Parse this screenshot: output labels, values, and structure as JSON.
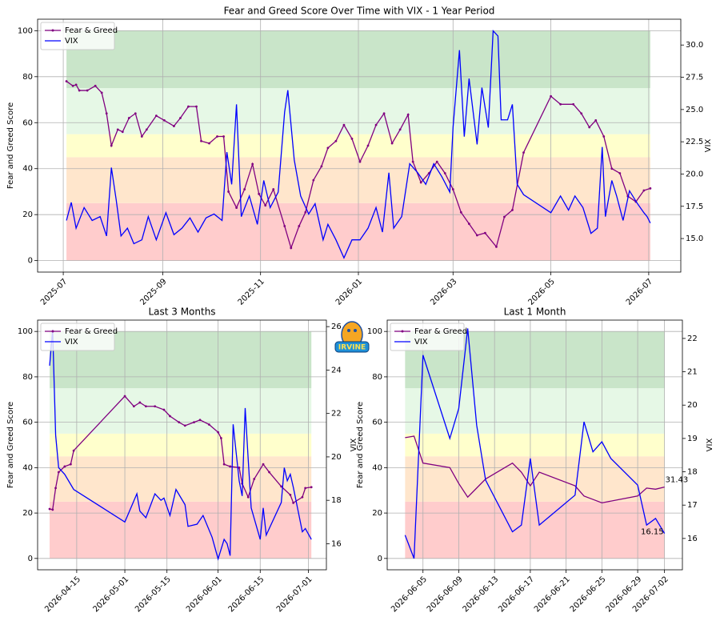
{
  "logo": {
    "text": "IRVINE"
  },
  "chart_data": [
    {
      "type": "line",
      "title": "Fear and Greed Score Over Time with VIX - 1 Year Period",
      "ylabel": "Fear and Greed Score",
      "y2label": "VIX",
      "grid": true,
      "legend": "upper left",
      "annotate_last": false,
      "xlim": [
        "2025-06-15",
        "2026-07-21"
      ],
      "xticks": [
        "2025-07",
        "2025-09",
        "2025-11",
        "2026-01",
        "2026-03",
        "2026-05",
        "2026-07"
      ],
      "ylim": [
        -5,
        105
      ],
      "yticks": [
        0,
        20,
        40,
        60,
        80,
        100
      ],
      "y2lim": [
        12.4,
        32
      ],
      "y2ticks": [
        {
          "value": 15,
          "label": "15.0"
        },
        {
          "value": 17.5,
          "label": "17.5"
        },
        {
          "value": 20,
          "label": "20.0"
        },
        {
          "value": 22.5,
          "label": "22.5"
        },
        {
          "value": 25,
          "label": "25.0"
        },
        {
          "value": 27.5,
          "label": "27.5"
        },
        {
          "value": 30,
          "label": "30.0"
        }
      ],
      "zones": [
        {
          "from": 0,
          "to": 25,
          "color": "#ffcccc"
        },
        {
          "from": 25,
          "to": 45,
          "color": "#ffe6cc"
        },
        {
          "from": 45,
          "to": 55,
          "color": "#ffffcc"
        },
        {
          "from": 55,
          "to": 75,
          "color": "#e6f8e6"
        },
        {
          "from": 75,
          "to": 100,
          "color": "#c9e5c9"
        }
      ],
      "series": [
        {
          "name": "Fear & Greed",
          "color": "#800080",
          "marker": true,
          "x": [
            "2025-07-03",
            "2025-07-07",
            "2025-07-09",
            "2025-07-11",
            "2025-07-16",
            "2025-07-21",
            "2025-07-25",
            "2025-07-28",
            "2025-07-31",
            "2025-08-04",
            "2025-08-07",
            "2025-08-11",
            "2025-08-15",
            "2025-08-19",
            "2025-08-22",
            "2025-08-28",
            "2025-09-02",
            "2025-09-08",
            "2025-09-12",
            "2025-09-17",
            "2025-09-22",
            "2025-09-25",
            "2025-09-30",
            "2025-10-05",
            "2025-10-09",
            "2025-10-12",
            "2025-10-17",
            "2025-10-22",
            "2025-10-27",
            "2025-10-31",
            "2025-11-04",
            "2025-11-09",
            "2025-11-16",
            "2025-11-20",
            "2025-11-25",
            "2025-11-29",
            "2025-12-04",
            "2025-12-09",
            "2025-12-13",
            "2025-12-18",
            "2025-12-23",
            "2025-12-28",
            "2026-01-02",
            "2026-01-07",
            "2026-01-12",
            "2026-01-17",
            "2026-01-22",
            "2026-01-27",
            "2026-02-01",
            "2026-02-04",
            "2026-02-09",
            "2026-02-14",
            "2026-02-19",
            "2026-02-24",
            "2026-03-01",
            "2026-03-06",
            "2026-03-11",
            "2026-03-16",
            "2026-03-21",
            "2026-03-28",
            "2026-04-02",
            "2026-04-07",
            "2026-04-14",
            "2026-05-01",
            "2026-05-07",
            "2026-05-15",
            "2026-05-20",
            "2026-05-25",
            "2026-05-29",
            "2026-06-03",
            "2026-06-08",
            "2026-06-13",
            "2026-06-18",
            "2026-06-23",
            "2026-06-28",
            "2026-07-02"
          ],
          "values": [
            78,
            76,
            76.5,
            74,
            74,
            76,
            73,
            64,
            50,
            57,
            56,
            62,
            64,
            54,
            57,
            63,
            61,
            58.5,
            62,
            67,
            67,
            52,
            51,
            54,
            54,
            30,
            23,
            31,
            42,
            29,
            24,
            31,
            15,
            5.5,
            15,
            21,
            35,
            41,
            49,
            52,
            59,
            53,
            43,
            50,
            59,
            64,
            51,
            57,
            63.5,
            43,
            34,
            38,
            43,
            38,
            31,
            21,
            16,
            11,
            12,
            6,
            19,
            22,
            47,
            71.5,
            68,
            68,
            64,
            58,
            61,
            54,
            40,
            38,
            28,
            25.6,
            30.5,
            31.4
          ]
        },
        {
          "name": "VIX",
          "color": "#0000ff",
          "axis": "y2",
          "marker": false,
          "x": [
            "2025-07-03",
            "2025-07-06",
            "2025-07-09",
            "2025-07-14",
            "2025-07-19",
            "2025-07-24",
            "2025-07-28",
            "2025-07-31",
            "2025-08-03",
            "2025-08-06",
            "2025-08-10",
            "2025-08-14",
            "2025-08-19",
            "2025-08-23",
            "2025-08-28",
            "2025-09-03",
            "2025-09-08",
            "2025-09-13",
            "2025-09-18",
            "2025-09-23",
            "2025-09-28",
            "2025-10-03",
            "2025-10-08",
            "2025-10-11",
            "2025-10-14",
            "2025-10-17",
            "2025-10-20",
            "2025-10-25",
            "2025-10-30",
            "2025-11-03",
            "2025-11-07",
            "2025-11-12",
            "2025-11-16",
            "2025-11-18",
            "2025-11-22",
            "2025-11-26",
            "2025-12-01",
            "2025-12-05",
            "2025-12-10",
            "2025-12-13",
            "2025-12-18",
            "2025-12-23",
            "2025-12-28",
            "2026-01-02",
            "2026-01-07",
            "2026-01-12",
            "2026-01-16",
            "2026-01-20",
            "2026-01-23",
            "2026-01-28",
            "2026-02-02",
            "2026-02-07",
            "2026-02-12",
            "2026-02-17",
            "2026-02-22",
            "2026-02-27",
            "2026-03-01",
            "2026-03-05",
            "2026-03-08",
            "2026-03-11",
            "2026-03-16",
            "2026-03-19",
            "2026-03-23",
            "2026-03-26",
            "2026-03-29",
            "2026-03-31",
            "2026-04-04",
            "2026-04-07",
            "2026-04-10",
            "2026-04-14",
            "2026-05-01",
            "2026-05-07",
            "2026-05-12",
            "2026-05-16",
            "2026-05-21",
            "2026-05-26",
            "2026-05-30",
            "2026-06-02",
            "2026-06-04",
            "2026-06-08",
            "2026-06-11",
            "2026-06-15",
            "2026-06-19",
            "2026-06-24",
            "2026-06-28",
            "2026-06-30",
            "2026-07-02"
          ],
          "values": [
            16.4,
            17.8,
            15.8,
            17.4,
            16.4,
            16.7,
            15.2,
            20.5,
            18,
            15.2,
            15.8,
            14.6,
            14.9,
            16.7,
            14.9,
            17,
            15.3,
            15.8,
            16.6,
            15.5,
            16.6,
            16.9,
            16.4,
            21.7,
            19.2,
            25.4,
            16.7,
            18.3,
            16.1,
            19.5,
            17.4,
            18.6,
            24.8,
            26.5,
            21.1,
            18.3,
            16.9,
            17.7,
            14.9,
            16.1,
            14.9,
            13.5,
            14.9,
            14.9,
            15.8,
            17.4,
            15.5,
            20.1,
            15.8,
            16.7,
            20.8,
            20.1,
            19.2,
            20.8,
            19.8,
            18.6,
            23.6,
            29.6,
            22.9,
            27.4,
            22.3,
            26.7,
            23.6,
            31.1,
            30.7,
            24.2,
            24.2,
            25.4,
            19.2,
            18.4,
            17,
            18.3,
            17.2,
            18.3,
            17.4,
            15.4,
            15.8,
            22.1,
            16.7,
            19.5,
            18.3,
            16.4,
            18.7,
            17.7,
            17,
            16.7,
            16.2
          ]
        }
      ]
    },
    {
      "type": "line",
      "title": "Last 3 Months",
      "ylabel": "Fear and Greed Score",
      "y2label": "VIX",
      "grid": true,
      "legend": "upper left",
      "annotate_last": false,
      "xlim": [
        "2026-04-02",
        "2026-07-07"
      ],
      "xticks": [
        "2026-04-15",
        "2026-05-01",
        "2026-05-15",
        "2026-06-01",
        "2026-06-15",
        "2026-07-01"
      ],
      "ylim": [
        -5,
        105
      ],
      "yticks": [
        0,
        20,
        40,
        60,
        80,
        100
      ],
      "y2lim": [
        14.8,
        26.3
      ],
      "y2ticks": [
        16,
        18,
        20,
        22,
        24,
        26
      ],
      "zones": [
        {
          "from": 0,
          "to": 25,
          "color": "#ffcccc"
        },
        {
          "from": 25,
          "to": 45,
          "color": "#ffe6cc"
        },
        {
          "from": 45,
          "to": 55,
          "color": "#ffffcc"
        },
        {
          "from": 55,
          "to": 75,
          "color": "#e6f8e6"
        },
        {
          "from": 75,
          "to": 100,
          "color": "#c9e5c9"
        }
      ],
      "series": [
        {
          "name": "Fear & Greed",
          "color": "#800080",
          "marker": true,
          "x": [
            "2026-04-06",
            "2026-04-07",
            "2026-04-08",
            "2026-04-09",
            "2026-04-11",
            "2026-04-13",
            "2026-04-14",
            "2026-05-01",
            "2026-05-04",
            "2026-05-06",
            "2026-05-08",
            "2026-05-11",
            "2026-05-14",
            "2026-05-16",
            "2026-05-19",
            "2026-05-21",
            "2026-05-24",
            "2026-05-26",
            "2026-05-29",
            "2026-06-01",
            "2026-06-02",
            "2026-06-03",
            "2026-06-05",
            "2026-06-08",
            "2026-06-09",
            "2026-06-11",
            "2026-06-13",
            "2026-06-16",
            "2026-06-18",
            "2026-06-22",
            "2026-06-25",
            "2026-06-26",
            "2026-06-29",
            "2026-06-30",
            "2026-07-02"
          ],
          "values": [
            21.8,
            21.5,
            31,
            38,
            40.5,
            41.5,
            47.5,
            71.5,
            67,
            68.7,
            67,
            67,
            65.5,
            62.7,
            60,
            58.5,
            60,
            61,
            59,
            55.6,
            53,
            41.5,
            40.5,
            40,
            33,
            27,
            35,
            41.5,
            38,
            31.7,
            28,
            24.5,
            27,
            31,
            31.4
          ]
        },
        {
          "name": "VIX",
          "color": "#0000ff",
          "axis": "y2",
          "marker": false,
          "x": [
            "2026-04-06",
            "2026-04-07",
            "2026-04-08",
            "2026-04-09",
            "2026-04-11",
            "2026-04-14",
            "2026-05-01",
            "2026-05-05",
            "2026-05-06",
            "2026-05-08",
            "2026-05-11",
            "2026-05-13",
            "2026-05-14",
            "2026-05-16",
            "2026-05-18",
            "2026-05-21",
            "2026-05-22",
            "2026-05-25",
            "2026-05-27",
            "2026-05-30",
            "2026-06-01",
            "2026-06-03",
            "2026-06-04",
            "2026-06-05",
            "2026-06-06",
            "2026-06-08",
            "2026-06-09",
            "2026-06-10",
            "2026-06-11",
            "2026-06-12",
            "2026-06-15",
            "2026-06-16",
            "2026-06-17",
            "2026-06-22",
            "2026-06-23",
            "2026-06-24",
            "2026-06-25",
            "2026-06-26",
            "2026-06-29",
            "2026-06-30",
            "2026-07-02"
          ],
          "values": [
            24.2,
            25.85,
            21,
            19.5,
            19.2,
            18.5,
            17,
            18.3,
            17.5,
            17.2,
            18.3,
            18,
            18.1,
            17.3,
            18.5,
            17.8,
            16.8,
            16.9,
            17.3,
            16.3,
            15.3,
            16.2,
            16,
            15.45,
            21.5,
            18.9,
            18.2,
            22.25,
            19.9,
            17.65,
            16.2,
            17.65,
            16.4,
            17.9,
            19.5,
            18.9,
            19.2,
            18.6,
            16.55,
            16.7,
            16.2
          ]
        }
      ]
    },
    {
      "type": "line",
      "title": "Last 1 Month",
      "ylabel": "Fear and Greed Score",
      "y2label": "VIX",
      "grid": true,
      "legend": "upper left",
      "annotate_last": true,
      "xlim": [
        "2026-06-01",
        "2026-07-04"
      ],
      "xticks": [
        "2026-06-05",
        "2026-06-09",
        "2026-06-13",
        "2026-06-17",
        "2026-06-21",
        "2026-06-25",
        "2026-06-29",
        "2026-07-02"
      ],
      "ylim": [
        -5,
        105
      ],
      "yticks": [
        0,
        20,
        40,
        60,
        80,
        100
      ],
      "y2lim": [
        15.06,
        22.55
      ],
      "y2ticks": [
        16,
        17,
        18,
        19,
        20,
        21,
        22
      ],
      "zones": [
        {
          "from": 0,
          "to": 25,
          "color": "#ffcccc"
        },
        {
          "from": 25,
          "to": 45,
          "color": "#ffe6cc"
        },
        {
          "from": 45,
          "to": 55,
          "color": "#ffffcc"
        },
        {
          "from": 55,
          "to": 75,
          "color": "#e6f8e6"
        },
        {
          "from": 75,
          "to": 100,
          "color": "#c9e5c9"
        }
      ],
      "series": [
        {
          "name": "Fear & Greed",
          "color": "#800080",
          "marker": false,
          "x": [
            "2026-06-03",
            "2026-06-04",
            "2026-06-05",
            "2026-06-08",
            "2026-06-09",
            "2026-06-10",
            "2026-06-11",
            "2026-06-12",
            "2026-06-15",
            "2026-06-16",
            "2026-06-17",
            "2026-06-18",
            "2026-06-22",
            "2026-06-23",
            "2026-06-24",
            "2026-06-25",
            "2026-06-29",
            "2026-06-30",
            "2026-07-01",
            "2026-07-02"
          ],
          "values": [
            53.2,
            53.9,
            42,
            40,
            33,
            27,
            31,
            35,
            42,
            38,
            32,
            38,
            32,
            27.5,
            26,
            24.5,
            27.5,
            31,
            30.5,
            31.43
          ]
        },
        {
          "name": "VIX",
          "color": "#0000ff",
          "axis": "y2",
          "marker": false,
          "x": [
            "2026-06-03",
            "2026-06-04",
            "2026-06-05",
            "2026-06-08",
            "2026-06-09",
            "2026-06-10",
            "2026-06-11",
            "2026-06-12",
            "2026-06-15",
            "2026-06-16",
            "2026-06-17",
            "2026-06-18",
            "2026-06-22",
            "2026-06-23",
            "2026-06-24",
            "2026-06-25",
            "2026-06-26",
            "2026-06-29",
            "2026-06-30",
            "2026-07-01",
            "2026-07-02"
          ],
          "values": [
            16.1,
            15.4,
            21.5,
            19,
            19.9,
            22.3,
            19.4,
            17.75,
            16.2,
            16.4,
            18.4,
            16.4,
            17.3,
            19.5,
            18.6,
            18.9,
            18.4,
            17.6,
            16.4,
            16.6,
            16.15
          ]
        }
      ]
    }
  ]
}
